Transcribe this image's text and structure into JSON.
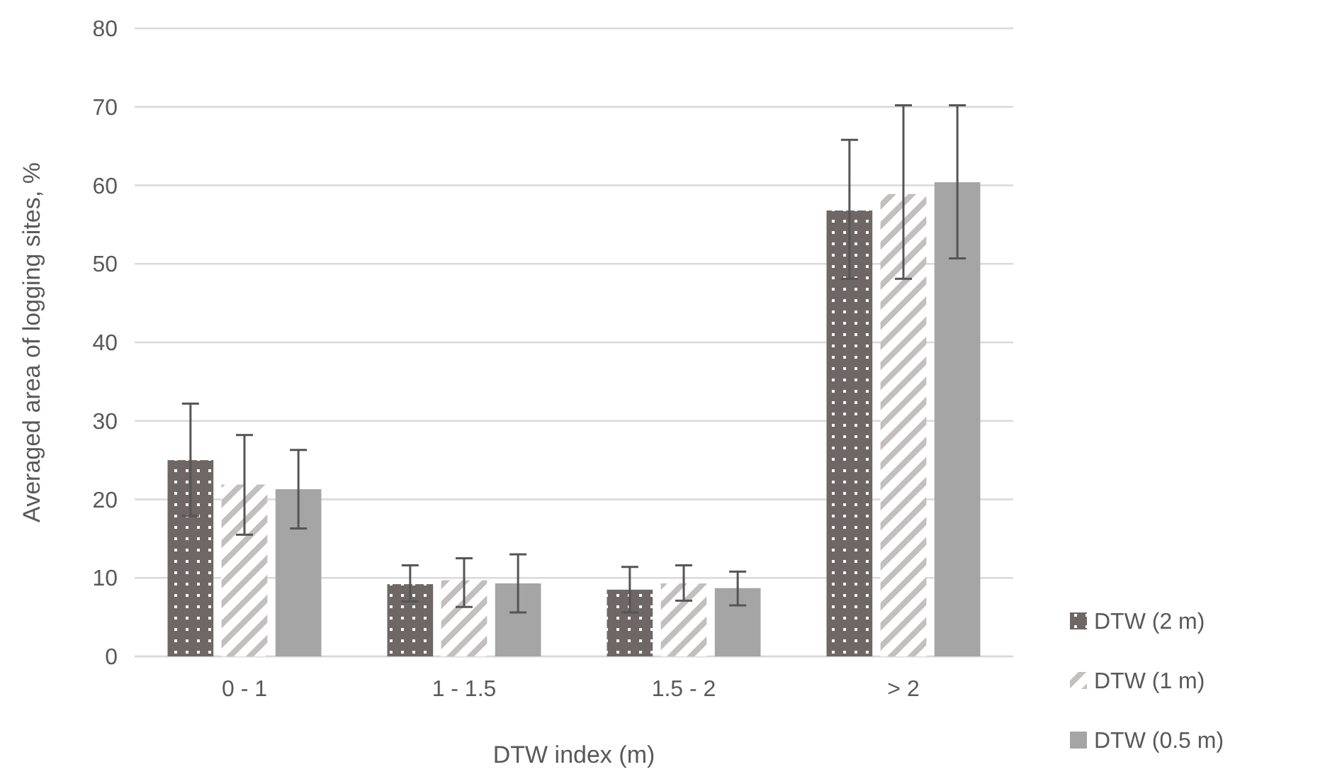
{
  "chart_data": {
    "type": "bar",
    "xlabel": "DTW index (m)",
    "ylabel": "Averaged area of logging sites, %",
    "categories": [
      "0 - 1",
      "1 - 1.5",
      "1.5 - 2",
      "> 2"
    ],
    "series": [
      {
        "name": "DTW (2 m)",
        "color": "#6f6765",
        "values": [
          25.0,
          9.2,
          8.5,
          56.8
        ],
        "errors": [
          [
            17.9,
            32.2
          ],
          [
            7.0,
            11.6
          ],
          [
            5.6,
            11.4
          ],
          [
            48.1,
            65.8
          ]
        ]
      },
      {
        "name": "DTW (1 m)",
        "color": "#c2bfbe",
        "values": [
          21.9,
          9.7,
          9.3,
          58.9
        ],
        "errors": [
          [
            15.5,
            28.2
          ],
          [
            6.3,
            12.5
          ],
          [
            7.1,
            11.6
          ],
          [
            48.1,
            70.2
          ]
        ]
      },
      {
        "name": "DTW (0.5 m)",
        "color": "#a5a5a5",
        "values": [
          21.3,
          9.3,
          8.7,
          60.4
        ],
        "errors": [
          [
            16.3,
            26.3
          ],
          [
            5.6,
            13.0
          ],
          [
            6.5,
            10.8
          ],
          [
            50.7,
            70.2
          ]
        ]
      }
    ],
    "ylim": [
      0,
      80
    ],
    "yticks": [
      0,
      10,
      20,
      30,
      40,
      50,
      60,
      70,
      80
    ],
    "grid": "y",
    "legend": "bottom right"
  }
}
